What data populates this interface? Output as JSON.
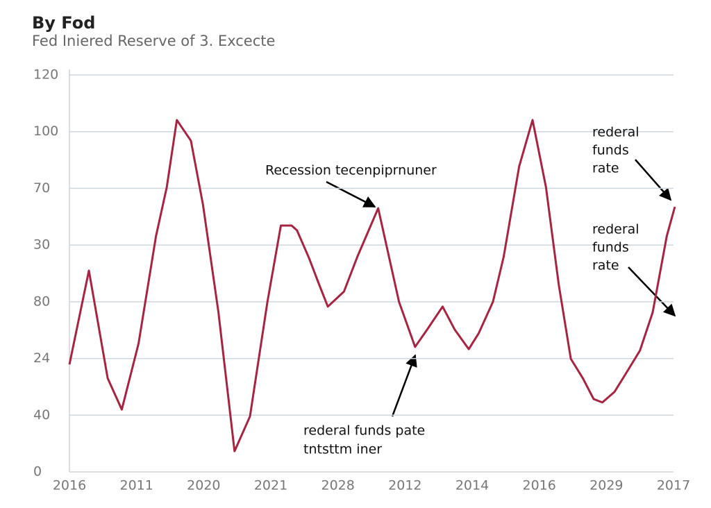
{
  "chart_data": {
    "type": "line",
    "title": "By Fod",
    "subtitle": "Fed Iniered Reserve of 3. Excecte",
    "x": [
      0,
      0.29,
      0.57,
      0.78,
      1.03,
      1.29,
      1.45,
      1.6,
      1.81,
      1.99,
      2.22,
      2.46,
      2.69,
      2.95,
      3.15,
      3.31,
      3.39,
      3.57,
      3.72,
      3.85,
      4.09,
      4.29,
      4.6,
      4.91,
      5.15,
      5.33,
      5.56,
      5.74,
      5.95,
      6.1,
      6.31,
      6.47,
      6.7,
      6.9,
      7.1,
      7.29,
      7.47,
      7.65,
      7.81,
      7.94,
      8.12,
      8.28,
      8.5,
      8.69,
      8.9,
      9.02
    ],
    "series": [
      {
        "color": "#a8233f",
        "values": [
          37.9,
          71.0,
          33.0,
          22.0,
          45.3,
          83.2,
          100.4,
          124.1,
          116.8,
          94.2,
          56.3,
          7.3,
          19.6,
          60.0,
          86.9,
          86.9,
          85.2,
          75.4,
          66.1,
          58.3,
          63.6,
          75.9,
          93.0,
          60.0,
          44.1,
          50.2,
          58.3,
          50.2,
          43.3,
          49.0,
          60.0,
          75.9,
          107.7,
          124.1,
          100.4,
          66.1,
          39.9,
          33.0,
          25.7,
          24.5,
          28.2,
          34.3,
          42.8,
          56.3,
          83.2,
          93.5
        ]
      }
    ],
    "xlim": [
      0,
      9
    ],
    "xticks": [
      {
        "value": 0,
        "label": "2016"
      },
      {
        "value": 1,
        "label": "2011"
      },
      {
        "value": 2,
        "label": "2020"
      },
      {
        "value": 3,
        "label": "2021"
      },
      {
        "value": 4,
        "label": "2028"
      },
      {
        "value": 5,
        "label": "2012"
      },
      {
        "value": 6,
        "label": "2014"
      },
      {
        "value": 7,
        "label": "2016"
      },
      {
        "value": 8,
        "label": "2029"
      },
      {
        "value": 9,
        "label": "2017"
      }
    ],
    "ylim": [
      0,
      140
    ],
    "yticks": [
      0,
      {
        "value": 20,
        "label": "40"
      },
      {
        "value": 40,
        "label": "24"
      },
      {
        "value": 60,
        "label": "80"
      },
      {
        "value": 80,
        "label": "30"
      },
      {
        "value": 100,
        "label": "70"
      },
      {
        "value": 120,
        "label": "100"
      },
      {
        "value": 140,
        "label": "120"
      }
    ],
    "grid": true,
    "annotations": [
      {
        "lines": [
          "Recession tecenpiprnuner"
        ]
      },
      {
        "lines": [
          "rederal funds pate",
          "tntsttm iner"
        ]
      },
      {
        "lines": [
          "rederal",
          "funds",
          "rate"
        ]
      },
      {
        "lines": [
          "rederal",
          "funds",
          "rate"
        ]
      }
    ]
  }
}
